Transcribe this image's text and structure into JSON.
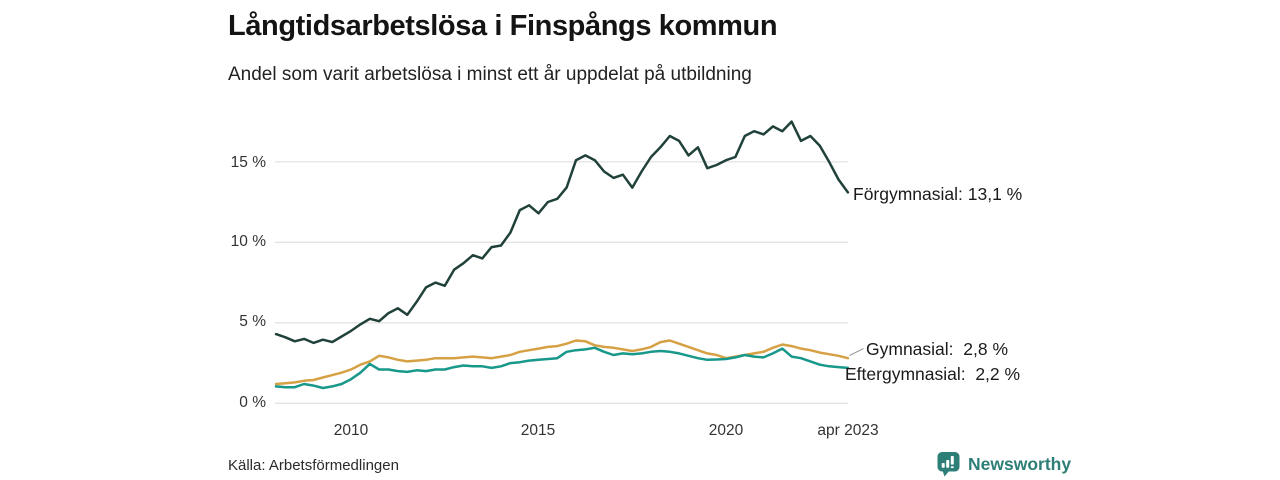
{
  "header": {
    "title": "Långtidsarbetslösa i Finspångs kommun",
    "subtitle": "Andel som varit arbetslösa i minst ett år uppdelat på utbildning"
  },
  "source": {
    "label": "Källa: Arbetsförmedlingen"
  },
  "branding": {
    "name": "Newsworthy",
    "color": "#2e7e78"
  },
  "chart_data": {
    "type": "line",
    "title": "Långtidsarbetslösa i Finspångs kommun",
    "subtitle": "Andel som varit arbetslösa i minst ett år uppdelat på utbildning",
    "grid": "horizontal",
    "legend_position": "end-of-line labels",
    "xlim": [
      2008,
      2023.25
    ],
    "ylim": [
      0,
      17.6
    ],
    "x_ticks": [
      {
        "value": 2010,
        "label": "2010"
      },
      {
        "value": 2015,
        "label": "2015"
      },
      {
        "value": 2020,
        "label": "2020"
      },
      {
        "value": 2023.25,
        "label": "apr 2023"
      }
    ],
    "y_ticks": [
      {
        "value": 15,
        "label": "15 %"
      },
      {
        "value": 10,
        "label": "10 %"
      },
      {
        "value": 5,
        "label": "5 %"
      },
      {
        "value": 0,
        "label": "0 %"
      }
    ],
    "x": [
      2008,
      2008.25,
      2008.5,
      2008.75,
      2009,
      2009.25,
      2009.5,
      2009.75,
      2010,
      2010.25,
      2010.5,
      2010.75,
      2011,
      2011.25,
      2011.5,
      2011.75,
      2012,
      2012.25,
      2012.5,
      2012.75,
      2013,
      2013.25,
      2013.5,
      2013.75,
      2014,
      2014.25,
      2014.5,
      2014.75,
      2015,
      2015.25,
      2015.5,
      2015.75,
      2016,
      2016.25,
      2016.5,
      2016.75,
      2017,
      2017.25,
      2017.5,
      2017.75,
      2018,
      2018.25,
      2018.5,
      2018.75,
      2019,
      2019.25,
      2019.5,
      2019.75,
      2020,
      2020.25,
      2020.5,
      2020.75,
      2021,
      2021.25,
      2021.5,
      2021.75,
      2022,
      2022.25,
      2022.5,
      2022.75,
      2023,
      2023.25
    ],
    "series": [
      {
        "name": "Förgymnasial",
        "end_label": "Förgymnasial: 13,1 %",
        "end_value": 13.1,
        "color": "#21413b",
        "values": [
          4.3,
          4.1,
          3.85,
          4.0,
          3.75,
          3.95,
          3.8,
          4.15,
          4.5,
          4.9,
          5.25,
          5.1,
          5.6,
          5.9,
          5.5,
          6.3,
          7.2,
          7.5,
          7.3,
          8.3,
          8.7,
          9.2,
          9.0,
          9.7,
          9.8,
          10.6,
          12.0,
          12.3,
          11.8,
          12.5,
          12.7,
          13.4,
          15.1,
          15.4,
          15.1,
          14.4,
          14.0,
          14.2,
          13.4,
          14.4,
          15.3,
          15.9,
          16.6,
          16.3,
          15.4,
          15.9,
          14.6,
          14.8,
          15.1,
          15.3,
          16.6,
          16.9,
          16.7,
          17.2,
          16.9,
          17.5,
          16.3,
          16.6,
          16.0,
          15.0,
          13.9,
          13.1
        ]
      },
      {
        "name": "Gymnasial",
        "end_label": "Gymnasial:  2,8 %",
        "end_value": 2.8,
        "color": "#d6a144",
        "values": [
          1.2,
          1.25,
          1.3,
          1.4,
          1.45,
          1.6,
          1.75,
          1.9,
          2.1,
          2.4,
          2.6,
          2.95,
          2.85,
          2.7,
          2.6,
          2.65,
          2.7,
          2.8,
          2.8,
          2.8,
          2.85,
          2.9,
          2.85,
          2.8,
          2.9,
          3.0,
          3.2,
          3.3,
          3.4,
          3.5,
          3.55,
          3.7,
          3.9,
          3.85,
          3.6,
          3.5,
          3.45,
          3.35,
          3.25,
          3.35,
          3.5,
          3.8,
          3.9,
          3.7,
          3.5,
          3.3,
          3.1,
          3.0,
          2.8,
          2.9,
          3.0,
          3.1,
          3.2,
          3.45,
          3.65,
          3.55,
          3.4,
          3.3,
          3.15,
          3.05,
          2.95,
          2.8
        ]
      },
      {
        "name": "Eftergymnasial",
        "end_label": "Eftergymnasial:  2,2 %",
        "end_value": 2.2,
        "color": "#17988a",
        "values": [
          1.05,
          1.0,
          1.0,
          1.2,
          1.1,
          0.95,
          1.05,
          1.2,
          1.5,
          1.9,
          2.45,
          2.1,
          2.1,
          2.0,
          1.95,
          2.05,
          2.0,
          2.1,
          2.1,
          2.25,
          2.35,
          2.3,
          2.3,
          2.2,
          2.3,
          2.5,
          2.55,
          2.65,
          2.7,
          2.75,
          2.8,
          3.2,
          3.3,
          3.35,
          3.45,
          3.2,
          3.0,
          3.1,
          3.05,
          3.1,
          3.2,
          3.25,
          3.2,
          3.1,
          2.95,
          2.8,
          2.7,
          2.72,
          2.75,
          2.85,
          3.0,
          2.9,
          2.85,
          3.1,
          3.4,
          2.9,
          2.8,
          2.6,
          2.4,
          2.3,
          2.25,
          2.2
        ]
      }
    ]
  }
}
